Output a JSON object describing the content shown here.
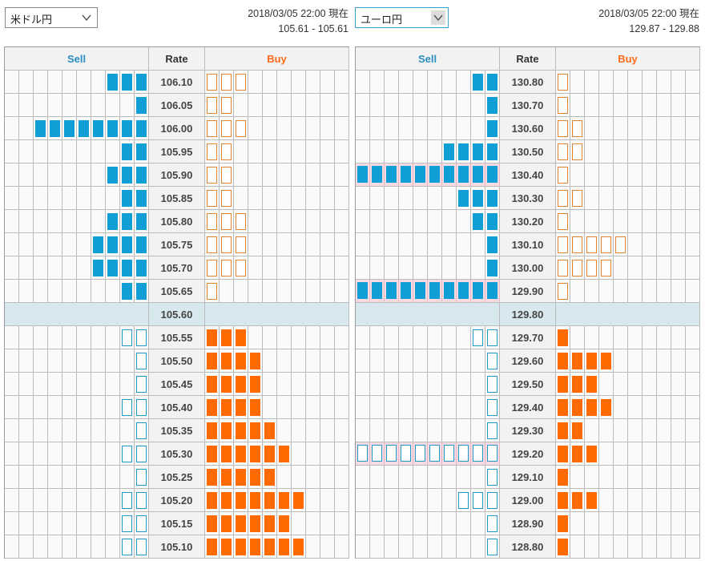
{
  "left": {
    "pair_select": "米ドル円",
    "timestamp": "2018/03/05 22:00 現在",
    "bid_ask": "105.61 - 105.61",
    "header": {
      "sell": "Sell",
      "rate": "Rate",
      "buy": "Buy"
    },
    "current_rate": "105.60",
    "rows": [
      {
        "rate": "106.10",
        "sell": 3,
        "buy": 3,
        "sell_type": "full",
        "buy_type": "outline"
      },
      {
        "rate": "106.05",
        "sell": 1,
        "buy": 2,
        "sell_type": "full",
        "buy_type": "outline"
      },
      {
        "rate": "106.00",
        "sell": 8,
        "buy": 3,
        "sell_type": "full",
        "buy_type": "outline"
      },
      {
        "rate": "105.95",
        "sell": 2,
        "buy": 2,
        "sell_type": "full",
        "buy_type": "outline"
      },
      {
        "rate": "105.90",
        "sell": 3,
        "buy": 2,
        "sell_type": "full",
        "buy_type": "outline"
      },
      {
        "rate": "105.85",
        "sell": 2,
        "buy": 2,
        "sell_type": "full",
        "buy_type": "outline"
      },
      {
        "rate": "105.80",
        "sell": 3,
        "buy": 3,
        "sell_type": "full",
        "buy_type": "outline"
      },
      {
        "rate": "105.75",
        "sell": 4,
        "buy": 3,
        "sell_type": "full",
        "buy_type": "outline"
      },
      {
        "rate": "105.70",
        "sell": 4,
        "buy": 3,
        "sell_type": "full",
        "buy_type": "outline"
      },
      {
        "rate": "105.65",
        "sell": 2,
        "buy": 1,
        "sell_type": "full",
        "buy_type": "outline"
      },
      {
        "rate": "105.60",
        "sell": 0,
        "buy": 0,
        "current": true
      },
      {
        "rate": "105.55",
        "sell": 2,
        "buy": 3,
        "sell_type": "outline",
        "buy_type": "full"
      },
      {
        "rate": "105.50",
        "sell": 1,
        "buy": 4,
        "sell_type": "outline",
        "buy_type": "full"
      },
      {
        "rate": "105.45",
        "sell": 1,
        "buy": 4,
        "sell_type": "outline",
        "buy_type": "full"
      },
      {
        "rate": "105.40",
        "sell": 2,
        "buy": 4,
        "sell_type": "outline",
        "buy_type": "full"
      },
      {
        "rate": "105.35",
        "sell": 1,
        "buy": 5,
        "sell_type": "outline",
        "buy_type": "full"
      },
      {
        "rate": "105.30",
        "sell": 2,
        "buy": 6,
        "sell_type": "outline",
        "buy_type": "full"
      },
      {
        "rate": "105.25",
        "sell": 1,
        "buy": 5,
        "sell_type": "outline",
        "buy_type": "full"
      },
      {
        "rate": "105.20",
        "sell": 2,
        "buy": 7,
        "sell_type": "outline",
        "buy_type": "full"
      },
      {
        "rate": "105.15",
        "sell": 2,
        "buy": 6,
        "sell_type": "outline",
        "buy_type": "full"
      },
      {
        "rate": "105.10",
        "sell": 2,
        "buy": 7,
        "sell_type": "outline",
        "buy_type": "full"
      }
    ]
  },
  "right": {
    "pair_select": "ユーロ円",
    "timestamp": "2018/03/05 22:00 現在",
    "bid_ask": "129.87 - 129.88",
    "header": {
      "sell": "Sell",
      "rate": "Rate",
      "buy": "Buy"
    },
    "current_rate": "129.80",
    "rows": [
      {
        "rate": "130.80",
        "sell": 2,
        "buy": 1,
        "sell_type": "full",
        "buy_type": "outline"
      },
      {
        "rate": "130.70",
        "sell": 1,
        "buy": 1,
        "sell_type": "full",
        "buy_type": "outline"
      },
      {
        "rate": "130.60",
        "sell": 1,
        "buy": 2,
        "sell_type": "full",
        "buy_type": "outline"
      },
      {
        "rate": "130.50",
        "sell": 4,
        "buy": 2,
        "sell_type": "full",
        "buy_type": "outline"
      },
      {
        "rate": "130.40",
        "sell": 10,
        "buy": 1,
        "sell_type": "full",
        "buy_type": "outline",
        "highlight": true
      },
      {
        "rate": "130.30",
        "sell": 3,
        "buy": 2,
        "sell_type": "full",
        "buy_type": "outline"
      },
      {
        "rate": "130.20",
        "sell": 2,
        "buy": 1,
        "sell_type": "full",
        "buy_type": "outline"
      },
      {
        "rate": "130.10",
        "sell": 1,
        "buy": 5,
        "sell_type": "full",
        "buy_type": "outline"
      },
      {
        "rate": "130.00",
        "sell": 1,
        "buy": 4,
        "sell_type": "full",
        "buy_type": "outline"
      },
      {
        "rate": "129.90",
        "sell": 10,
        "buy": 1,
        "sell_type": "full",
        "buy_type": "outline",
        "highlight": true
      },
      {
        "rate": "129.80",
        "sell": 0,
        "buy": 0,
        "current": true
      },
      {
        "rate": "129.70",
        "sell": 2,
        "buy": 1,
        "sell_type": "outline",
        "buy_type": "full"
      },
      {
        "rate": "129.60",
        "sell": 1,
        "buy": 4,
        "sell_type": "outline",
        "buy_type": "full"
      },
      {
        "rate": "129.50",
        "sell": 1,
        "buy": 3,
        "sell_type": "outline",
        "buy_type": "full"
      },
      {
        "rate": "129.40",
        "sell": 1,
        "buy": 4,
        "sell_type": "outline",
        "buy_type": "full"
      },
      {
        "rate": "129.30",
        "sell": 1,
        "buy": 2,
        "sell_type": "outline",
        "buy_type": "full"
      },
      {
        "rate": "129.20",
        "sell": 10,
        "buy": 3,
        "sell_type": "outline",
        "buy_type": "full",
        "highlight": true
      },
      {
        "rate": "129.10",
        "sell": 1,
        "buy": 1,
        "sell_type": "outline",
        "buy_type": "full"
      },
      {
        "rate": "129.00",
        "sell": 3,
        "buy": 3,
        "sell_type": "outline",
        "buy_type": "full"
      },
      {
        "rate": "128.90",
        "sell": 1,
        "buy": 1,
        "sell_type": "outline",
        "buy_type": "full"
      },
      {
        "rate": "128.80",
        "sell": 1,
        "buy": 1,
        "sell_type": "outline",
        "buy_type": "full"
      }
    ]
  },
  "colors": {
    "sell": "#0f9fd6",
    "buy": "#ff6a00",
    "current_row": "#d7e8ee",
    "highlight": "#f6dbe3"
  },
  "icons": {
    "dropdown": "chevron-down-icon"
  }
}
